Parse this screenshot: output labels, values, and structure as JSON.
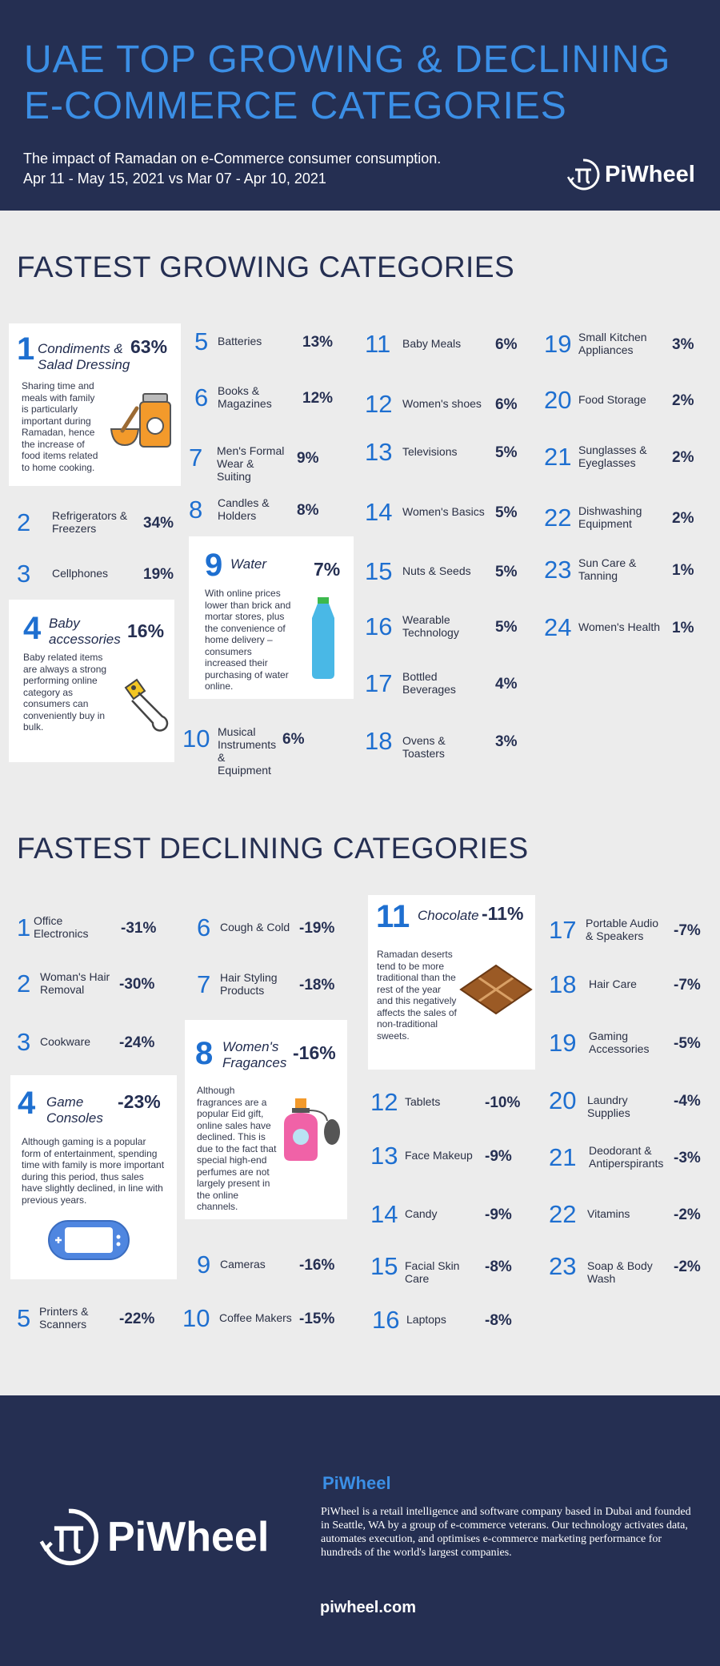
{
  "header": {
    "title_line1": "UAE TOP GROWING & DECLINING",
    "title_line2": "E-COMMERCE CATEGORIES",
    "subtitle": "The impact of  Ramadan on e-Commerce consumer consumption.",
    "dates": "Apr 11 - May 15, 2021 vs Mar 07 - Apr 10, 2021",
    "logo_text": "PiWheel"
  },
  "growing": {
    "title": "FASTEST GROWING CATEGORIES",
    "cards": [
      {
        "num": "1",
        "label": "Condiments & Salad Dressing",
        "pct": "63%",
        "desc": "Sharing time and meals with family is particularly important during Ramadan, hence the increase of food items related to home cooking.",
        "icon": "condiments-jar-icon"
      },
      {
        "num": "4",
        "label": "Baby accessories",
        "pct": "16%",
        "desc": "Baby related items are always a strong performing online category as consumers can conveniently buy in bulk.",
        "icon": "safety-pin-icon"
      },
      {
        "num": "9",
        "label": "Water",
        "pct": "7%",
        "desc": "With online prices lower than brick and mortar stores, plus the convenience of home delivery – consumers increased their purchasing of water online.",
        "icon": "water-bottle-icon"
      }
    ],
    "items": [
      {
        "num": "2",
        "label": "Refrigerators & Freezers",
        "pct": "34%"
      },
      {
        "num": "3",
        "label": "Cellphones",
        "pct": "19%"
      },
      {
        "num": "5",
        "label": "Batteries",
        "pct": "13%"
      },
      {
        "num": "6",
        "label": "Books & Magazines",
        "pct": "12%"
      },
      {
        "num": "7",
        "label": "Men's Formal Wear & Suiting",
        "pct": "9%"
      },
      {
        "num": "8",
        "label": "Candles & Holders",
        "pct": "8%"
      },
      {
        "num": "10",
        "label": "Musical Instruments & Equipment",
        "pct": "6%"
      },
      {
        "num": "11",
        "label": "Baby Meals",
        "pct": "6%"
      },
      {
        "num": "12",
        "label": "Women's shoes",
        "pct": "6%"
      },
      {
        "num": "13",
        "label": "Televisions",
        "pct": "5%"
      },
      {
        "num": "14",
        "label": "Women's Basics",
        "pct": "5%"
      },
      {
        "num": "15",
        "label": "Nuts & Seeds",
        "pct": "5%"
      },
      {
        "num": "16",
        "label": "Wearable Technology",
        "pct": "5%"
      },
      {
        "num": "17",
        "label": "Bottled Beverages",
        "pct": "4%"
      },
      {
        "num": "18",
        "label": "Ovens & Toasters",
        "pct": "3%"
      },
      {
        "num": "19",
        "label": "Small Kitchen Appliances",
        "pct": "3%"
      },
      {
        "num": "20",
        "label": "Food Storage",
        "pct": "2%"
      },
      {
        "num": "21",
        "label": "Sunglasses & Eyeglasses",
        "pct": "2%"
      },
      {
        "num": "22",
        "label": "Dishwashing Equipment",
        "pct": "2%"
      },
      {
        "num": "23",
        "label": "Sun Care & Tanning",
        "pct": "1%"
      },
      {
        "num": "24",
        "label": "Women's Health",
        "pct": "1%"
      }
    ]
  },
  "declining": {
    "title": "FASTEST DECLINING CATEGORIES",
    "cards": [
      {
        "num": "4",
        "label": "Game Consoles",
        "pct": "-23%",
        "desc": "Although gaming is a popular form of entertainment, spending time with family is more important during this period, thus sales have slightly declined, in line with previous years.",
        "icon": "game-console-icon"
      },
      {
        "num": "8",
        "label": "Women's Fragances",
        "pct": "-16%",
        "desc": "Although fragrances are a popular Eid gift, online sales have declined. This is due to the fact that special high-end perfumes are not largely present in the online channels.",
        "icon": "perfume-bottle-icon"
      },
      {
        "num": "11",
        "label": "Chocolate",
        "pct": "-11%",
        "desc": "Ramadan deserts tend to be more traditional than the rest of the year and this negatively affects the sales of non-traditional sweets.",
        "icon": "chocolate-bar-icon"
      }
    ],
    "items": [
      {
        "num": "1",
        "label": "Office Electronics",
        "pct": "-31%"
      },
      {
        "num": "2",
        "label": "Woman's Hair Removal",
        "pct": "-30%"
      },
      {
        "num": "3",
        "label": "Cookware",
        "pct": "-24%"
      },
      {
        "num": "5",
        "label": "Printers & Scanners",
        "pct": "-22%"
      },
      {
        "num": "6",
        "label": "Cough & Cold",
        "pct": "-19%"
      },
      {
        "num": "7",
        "label": "Hair Styling Products",
        "pct": "-18%"
      },
      {
        "num": "9",
        "label": "Cameras",
        "pct": "-16%"
      },
      {
        "num": "10",
        "label": "Coffee Makers",
        "pct": "-15%"
      },
      {
        "num": "12",
        "label": "Tablets",
        "pct": "-10%"
      },
      {
        "num": "13",
        "label": "Face Makeup",
        "pct": "-9%"
      },
      {
        "num": "14",
        "label": "Candy",
        "pct": "-9%"
      },
      {
        "num": "15",
        "label": "Facial Skin Care",
        "pct": "-8%"
      },
      {
        "num": "16",
        "label": "Laptops",
        "pct": "-8%"
      },
      {
        "num": "17",
        "label": "Portable Audio & Speakers",
        "pct": "-7%"
      },
      {
        "num": "18",
        "label": "Hair Care",
        "pct": "-7%"
      },
      {
        "num": "19",
        "label": "Gaming Accessories",
        "pct": "-5%"
      },
      {
        "num": "20",
        "label": "Laundry Supplies",
        "pct": "-4%"
      },
      {
        "num": "21",
        "label": "Deodorant & Antiperspirants",
        "pct": "-3%"
      },
      {
        "num": "22",
        "label": "Vitamins",
        "pct": "-2%"
      },
      {
        "num": "23",
        "label": "Soap & Body Wash",
        "pct": "-2%"
      }
    ]
  },
  "footer": {
    "about_title": "PiWheel",
    "about_text": "PiWheel  is a retail intelligence and software company based in Dubai and founded in Seattle, WA by a group of e-commerce veterans. Our technology activates data, automates execution, and optimises e-commerce marketing performance for hundreds of the world's largest companies.",
    "website": "piwheel.com",
    "logo_text": "PiWheel"
  },
  "colors": {
    "navy": "#252f52",
    "accent_blue": "#3b8fe6",
    "number_blue": "#1e6fd0",
    "background": "#ececec",
    "card": "#ffffff"
  }
}
